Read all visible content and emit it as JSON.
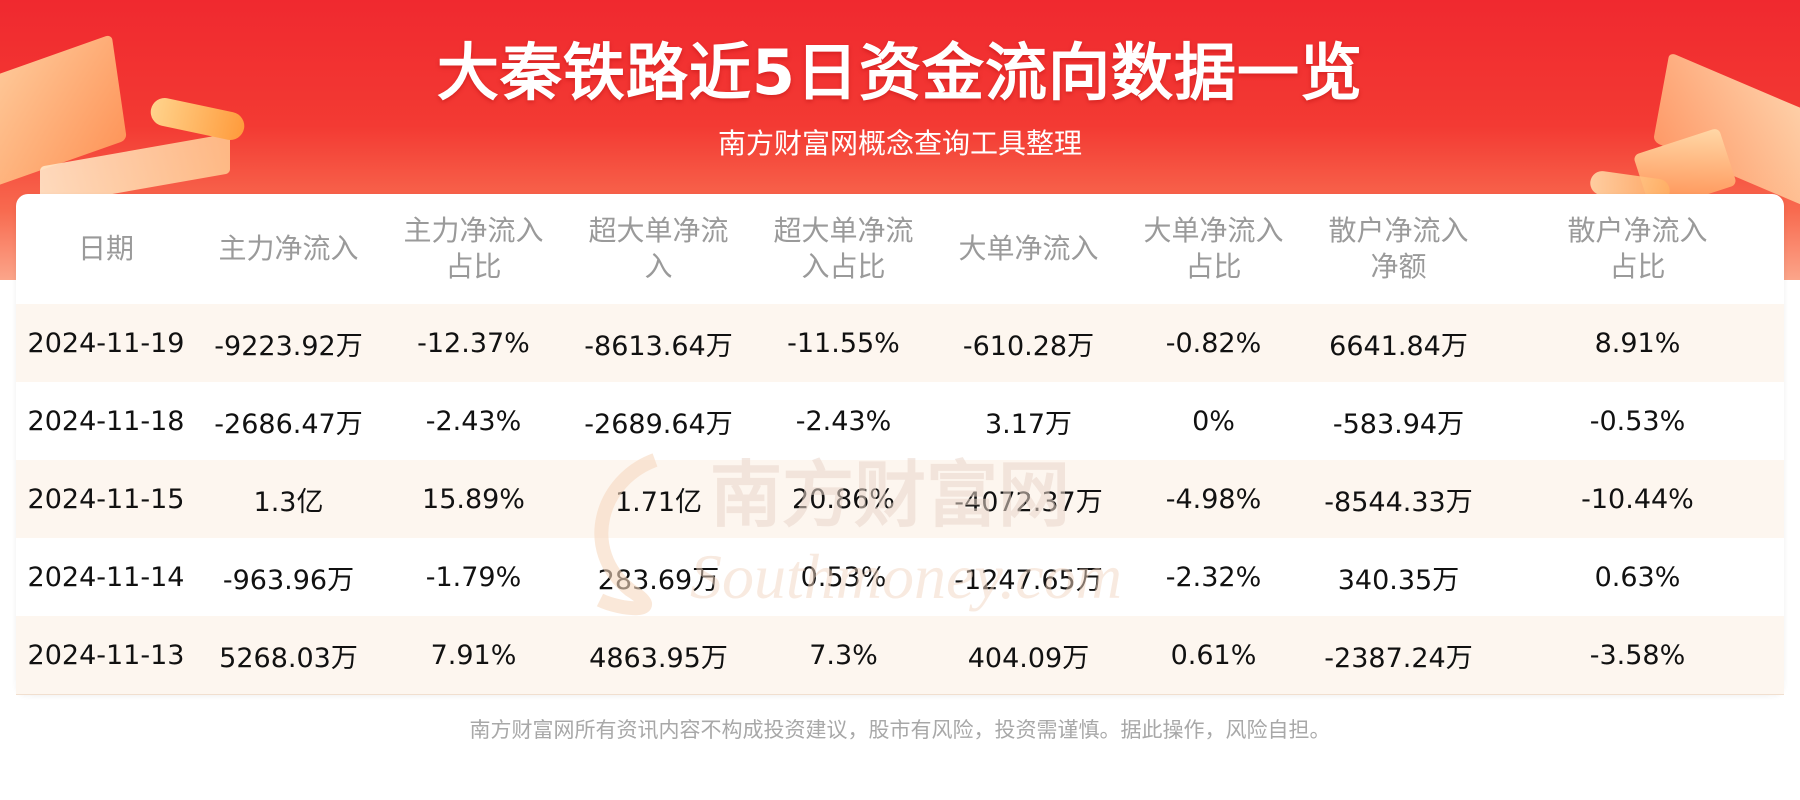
{
  "header": {
    "title": "大秦铁路近5日资金流向数据一览",
    "subtitle": "南方财富网概念查询工具整理"
  },
  "table": {
    "columns": [
      "日期",
      "主力净流入",
      "主力净流入\n占比",
      "超大单净流\n入",
      "超大单净流\n入占比",
      "大单净流入",
      "大单净流入\n占比",
      "散户净流入\n净额",
      "散户净流入\n占比"
    ],
    "rows": [
      [
        "2024-11-19",
        "-9223.92万",
        "-12.37%",
        "-8613.64万",
        "-11.55%",
        "-610.28万",
        "-0.82%",
        "6641.84万",
        "8.91%"
      ],
      [
        "2024-11-18",
        "-2686.47万",
        "-2.43%",
        "-2689.64万",
        "-2.43%",
        "3.17万",
        "0%",
        "-583.94万",
        "-0.53%"
      ],
      [
        "2024-11-15",
        "1.3亿",
        "15.89%",
        "1.71亿",
        "20.86%",
        "-4072.37万",
        "-4.98%",
        "-8544.33万",
        "-10.44%"
      ],
      [
        "2024-11-14",
        "-963.96万",
        "-1.79%",
        "283.69万",
        "0.53%",
        "-1247.65万",
        "-2.32%",
        "340.35万",
        "0.63%"
      ],
      [
        "2024-11-13",
        "5268.03万",
        "7.91%",
        "4863.95万",
        "7.3%",
        "404.09万",
        "0.61%",
        "-2387.24万",
        "-3.58%"
      ]
    ]
  },
  "watermark": {
    "text_cn": "南方财富网",
    "text_en": "Southmoney.com"
  },
  "footer": {
    "disclaimer": "南方财富网所有资讯内容不构成投资建议，股市有风险，投资需谨慎。据此操作，风险自担。"
  }
}
